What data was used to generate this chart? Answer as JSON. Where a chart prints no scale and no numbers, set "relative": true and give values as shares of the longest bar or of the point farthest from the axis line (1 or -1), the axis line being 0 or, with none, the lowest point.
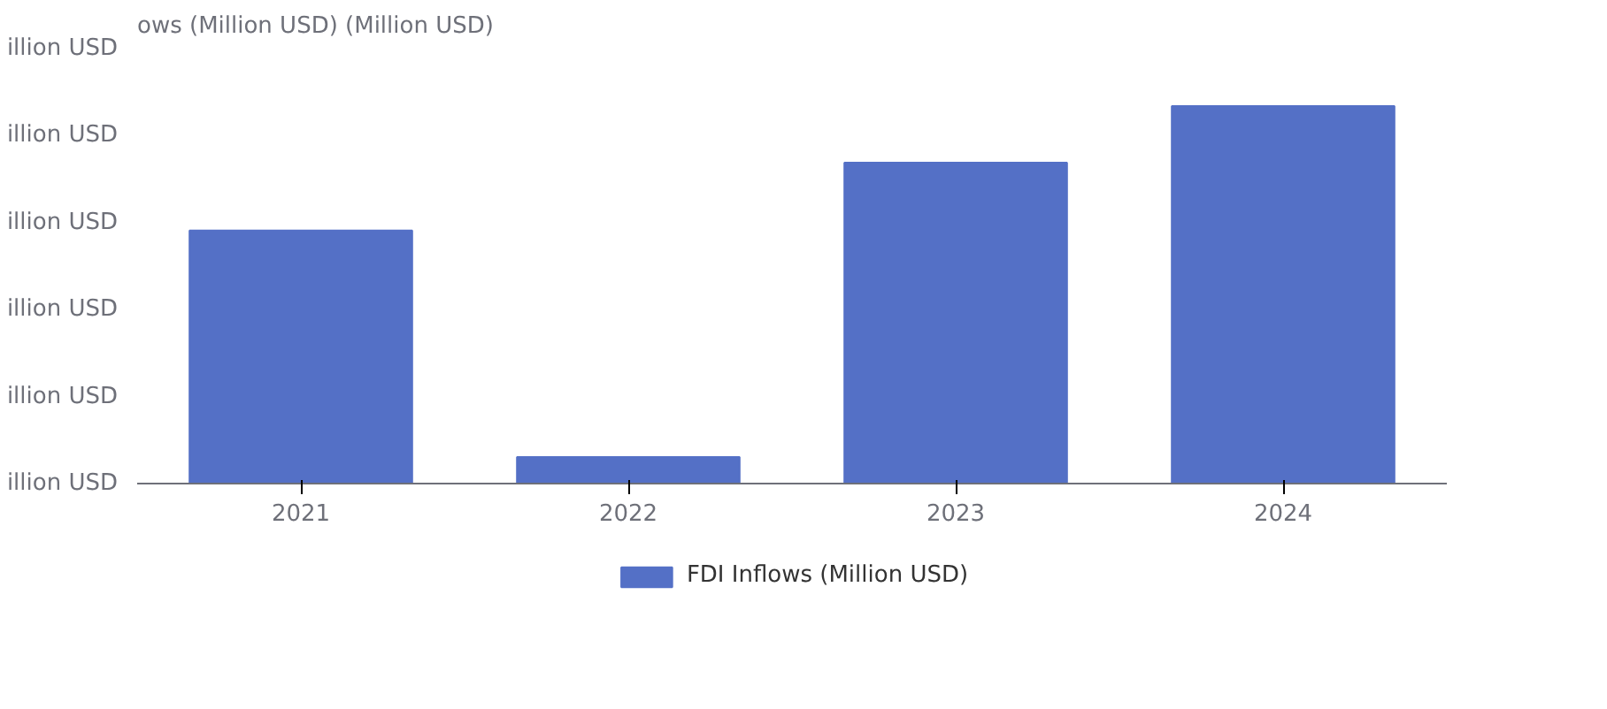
{
  "chart_data": {
    "type": "bar",
    "relative": true,
    "ylabel": "ows (Million USD) (Million USD)",
    "categories": [
      "2021",
      "2022",
      "2023",
      "2024"
    ],
    "series": [
      {
        "name": "FDI Inflows (Million USD)",
        "color": "#5470c6",
        "values": [
          0.67,
          0.07,
          0.85,
          1
        ]
      }
    ],
    "annotations": [
      "illion USD",
      "illion USD",
      "illion USD",
      "illion USD",
      "illion USD",
      "illion USD"
    ],
    "legend": "bottom"
  }
}
